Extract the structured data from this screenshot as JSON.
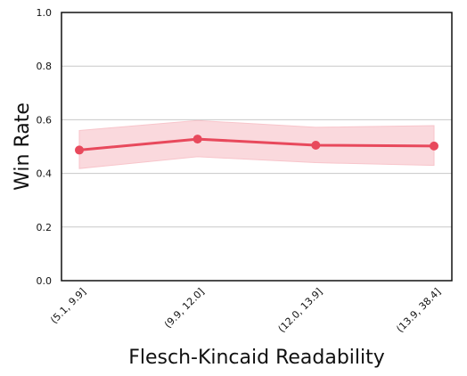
{
  "chart_data": {
    "type": "line",
    "xlabel": "Flesch-Kincaid Readability",
    "ylabel": "Win Rate",
    "categories": [
      "(5.1, 9.9]",
      "(9.9, 12.0]",
      "(12.0, 13.9]",
      "(13.9, 38.4]"
    ],
    "series": [
      {
        "values": [
          0.487,
          0.528,
          0.505,
          0.502
        ],
        "lower": [
          0.418,
          0.462,
          0.44,
          0.43
        ],
        "upper": [
          0.56,
          0.597,
          0.572,
          0.578
        ]
      }
    ],
    "ylim": [
      0.0,
      1.0
    ],
    "yticks": [
      "0.0",
      "0.2",
      "0.4",
      "0.6",
      "0.8",
      "1.0"
    ],
    "grid": "horizontal",
    "colors": {
      "line": "#e8495c",
      "band": "#f8c5cb",
      "grid": "#c8c8c8"
    }
  }
}
